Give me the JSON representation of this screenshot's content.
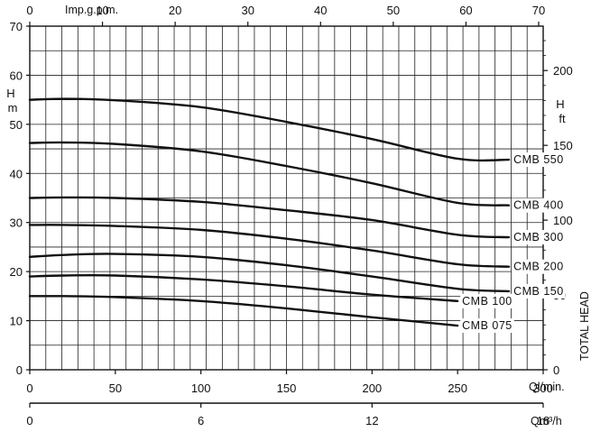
{
  "chart_data": {
    "type": "line",
    "title": "",
    "xlabel": "Ql/min.",
    "xlim": [
      0,
      300
    ],
    "x_ticks": [
      0,
      50,
      100,
      150,
      200,
      250,
      300
    ],
    "ylabel": "H\nm",
    "ylim": [
      0,
      70
    ],
    "y_ticks": [
      0,
      10,
      20,
      30,
      40,
      50,
      60,
      70
    ],
    "grid": true,
    "top_axis": {
      "label": "Imp.g.p.m.",
      "ticks": [
        0,
        10,
        20,
        30,
        40,
        50,
        60,
        70
      ]
    },
    "bottom_axis2": {
      "label": "Qm³/h",
      "ticks": [
        0,
        6,
        12,
        18
      ]
    },
    "right_axis": {
      "label": "H\nft",
      "ticks": [
        0,
        50,
        100,
        150,
        200
      ]
    },
    "right_title": "TOTAL HEAD",
    "series": [
      {
        "name": "CMB 550",
        "x": [
          0,
          20,
          50,
          100,
          150,
          200,
          250,
          280
        ],
        "y": [
          55,
          55.2,
          54.9,
          53.5,
          50.5,
          47,
          43,
          42.8
        ]
      },
      {
        "name": "CMB 400",
        "x": [
          0,
          20,
          50,
          100,
          150,
          200,
          250,
          280
        ],
        "y": [
          46.2,
          46.3,
          46,
          44.5,
          41.5,
          38,
          34,
          33.5
        ]
      },
      {
        "name": "CMB 300",
        "x": [
          0,
          20,
          50,
          100,
          150,
          200,
          250,
          280
        ],
        "y": [
          35,
          35.1,
          35,
          34.2,
          32.5,
          30.5,
          27.5,
          27
        ]
      },
      {
        "name": "CMB 200",
        "x": [
          0,
          20,
          50,
          100,
          150,
          200,
          250,
          280
        ],
        "y": [
          29.5,
          29.5,
          29.3,
          28.5,
          26.7,
          24.3,
          21.5,
          21
        ]
      },
      {
        "name": "CMB 150",
        "x": [
          0,
          20,
          50,
          100,
          150,
          200,
          250,
          280
        ],
        "y": [
          23,
          23.4,
          23.6,
          23,
          21.3,
          19,
          16.5,
          16
        ]
      },
      {
        "name": "CMB 100",
        "x": [
          0,
          20,
          50,
          100,
          150,
          200,
          250
        ],
        "y": [
          19,
          19.2,
          19.2,
          18.4,
          17,
          15.3,
          14
        ]
      },
      {
        "name": "CMB 075",
        "x": [
          0,
          20,
          50,
          100,
          150,
          200,
          250
        ],
        "y": [
          15,
          15,
          14.8,
          14,
          12.5,
          10.7,
          9
        ]
      }
    ]
  }
}
